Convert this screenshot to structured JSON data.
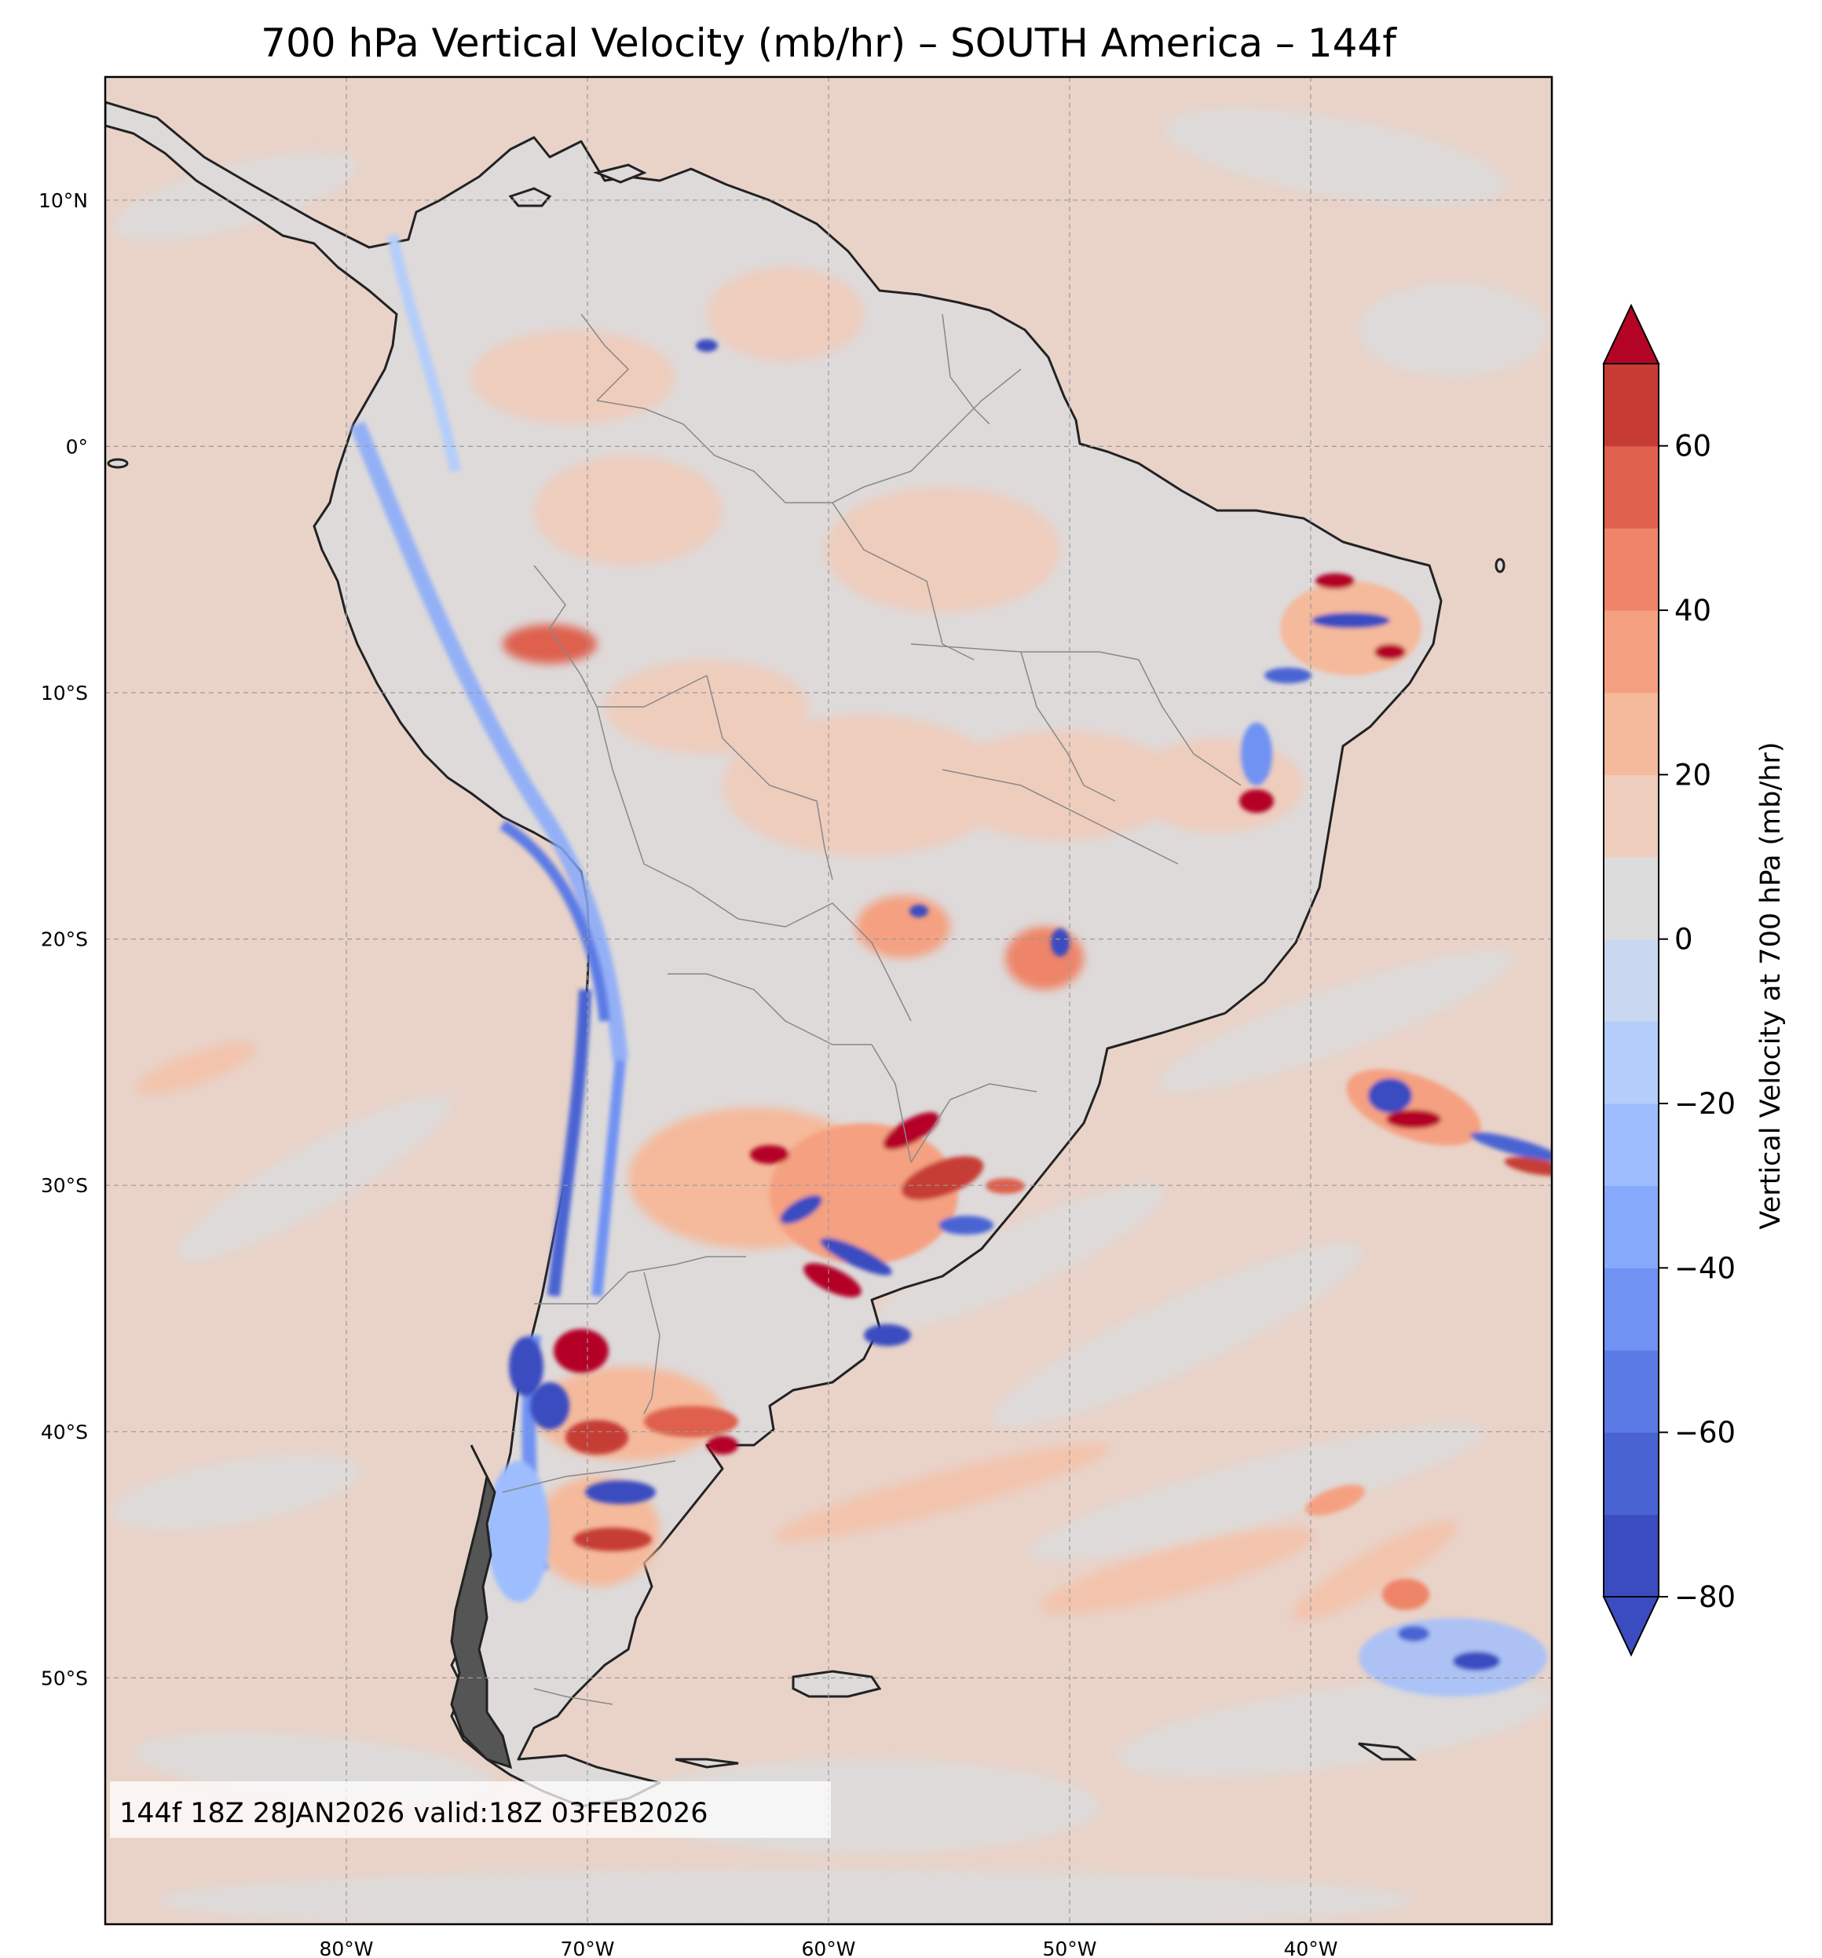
{
  "figure": {
    "title": "700 hPa Vertical Velocity (mb/hr) – SOUTH America – 144f",
    "stamp": "144f 18Z 28JAN2026 valid:18Z 03FEB2026"
  },
  "map": {
    "region": "SOUTH America",
    "lon_range": [
      -90,
      -30
    ],
    "lat_range": [
      -60,
      15
    ],
    "lat_labels": [
      "10°N",
      "0°",
      "10°S",
      "20°S",
      "30°S",
      "40°S",
      "50°S"
    ],
    "lat_values": [
      10,
      0,
      -10,
      -20,
      -30,
      -40,
      -50
    ],
    "lon_labels": [
      "80°W",
      "70°W",
      "60°W",
      "50°W",
      "40°W"
    ],
    "lon_values": [
      -80,
      -70,
      -60,
      -50,
      -40
    ],
    "colors": {
      "land_outline": "#222222",
      "border": "#888888",
      "grid": "#999999"
    }
  },
  "colorbar": {
    "label": "Vertical Velocity at 700 hPa (mb/hr)",
    "range": [
      -80,
      70
    ],
    "levels": [
      -80,
      -70,
      -60,
      -50,
      -40,
      -30,
      -20,
      -10,
      0,
      10,
      20,
      30,
      40,
      50,
      60,
      70
    ],
    "tick_values": [
      60,
      40,
      20,
      0,
      -20,
      -40,
      -60,
      -80
    ],
    "tick_labels": [
      "60",
      "40",
      "20",
      "0",
      "−20",
      "−40",
      "−60",
      "−80"
    ],
    "band_colors": [
      "#3b4cc0",
      "#4a63d3",
      "#5b7ae5",
      "#6f92f3",
      "#86a9fc",
      "#9dbdff",
      "#b4cdfa",
      "#c9d7f0",
      "#dddcdc",
      "#eecdbd",
      "#f5b99b",
      "#f5a081",
      "#ee8468",
      "#de604d",
      "#c63c35",
      "#b40426"
    ],
    "under_color": "#3b4cc0",
    "over_color": "#b40426"
  }
}
